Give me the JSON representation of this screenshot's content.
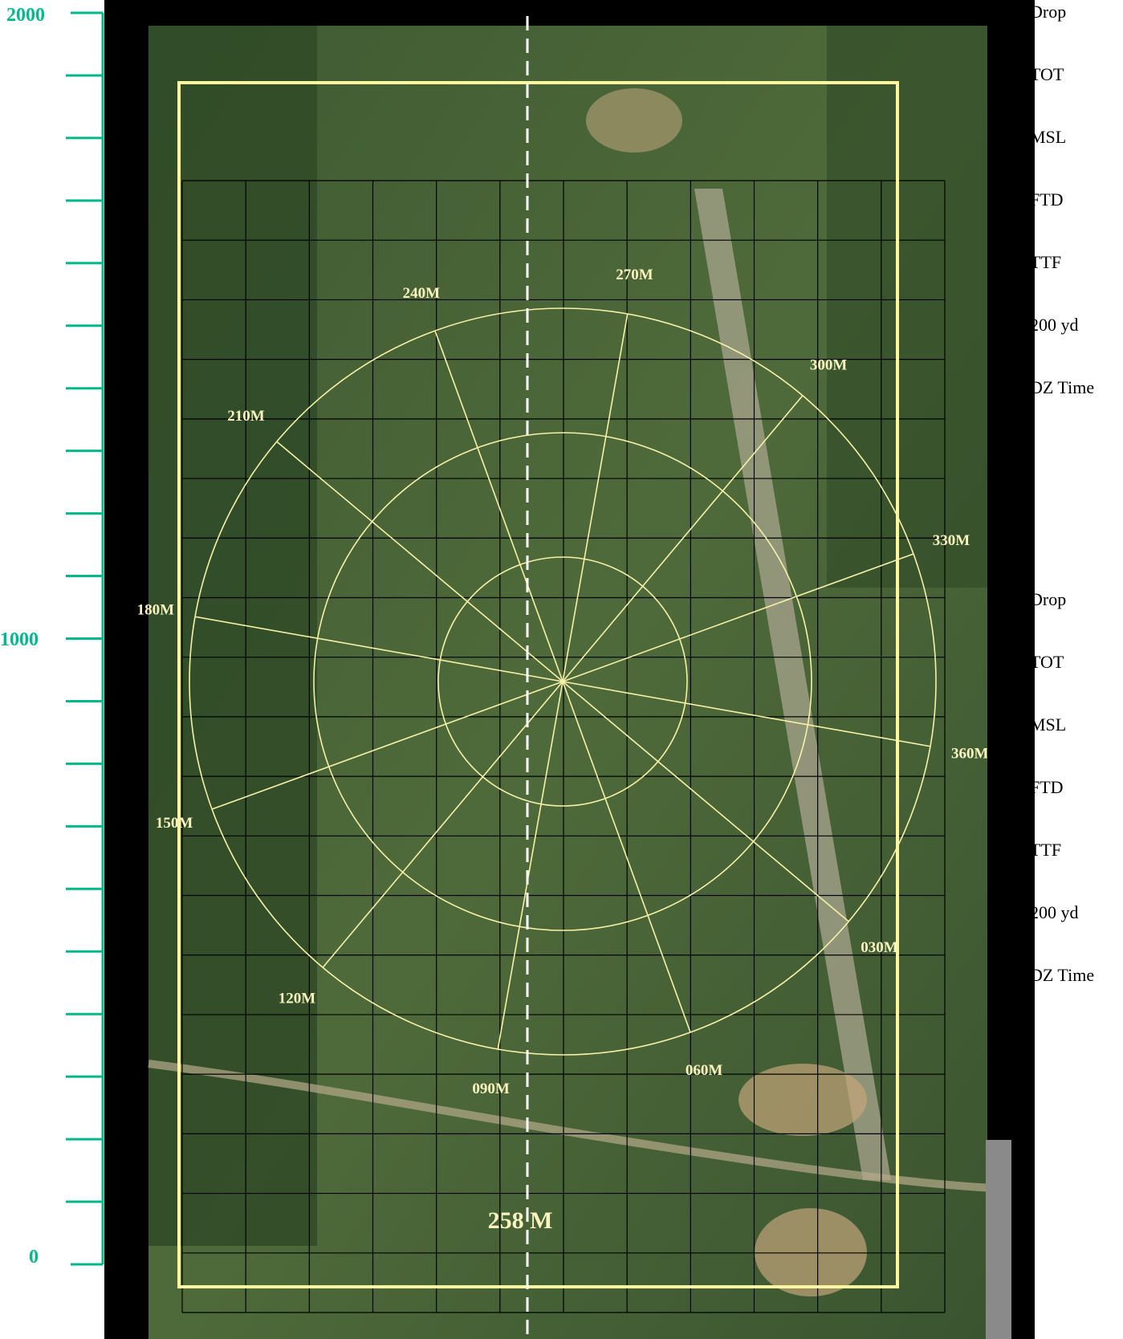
{
  "scale": {
    "labels": [
      "2000",
      "1000",
      "0"
    ],
    "color": "#00b98a"
  },
  "map": {
    "center_label": "258 M",
    "circle_color": "#f7f1a6",
    "frame_color": "#fff7a0",
    "radials": [
      {
        "label": "270M",
        "bearing": 10
      },
      {
        "label": "300M",
        "bearing": 40
      },
      {
        "label": "330M",
        "bearing": 70
      },
      {
        "label": "360M",
        "bearing": 100
      },
      {
        "label": "030M",
        "bearing": 130
      },
      {
        "label": "060M",
        "bearing": 160
      },
      {
        "label": "090M",
        "bearing": 190
      },
      {
        "label": "120M",
        "bearing": 220
      },
      {
        "label": "150M",
        "bearing": 250
      },
      {
        "label": "180M",
        "bearing": 280
      },
      {
        "label": "210M",
        "bearing": 310
      },
      {
        "label": "240M",
        "bearing": 340
      }
    ]
  },
  "side_panel": {
    "group_top": [
      "Drop",
      "TOT",
      "MSL",
      "FTD",
      "TTF",
      "200 yd",
      "DZ Time"
    ],
    "group_bottom": [
      "Drop",
      "TOT",
      "MSL",
      "FTD",
      "TTF",
      "200 yd",
      "DZ Time"
    ]
  }
}
